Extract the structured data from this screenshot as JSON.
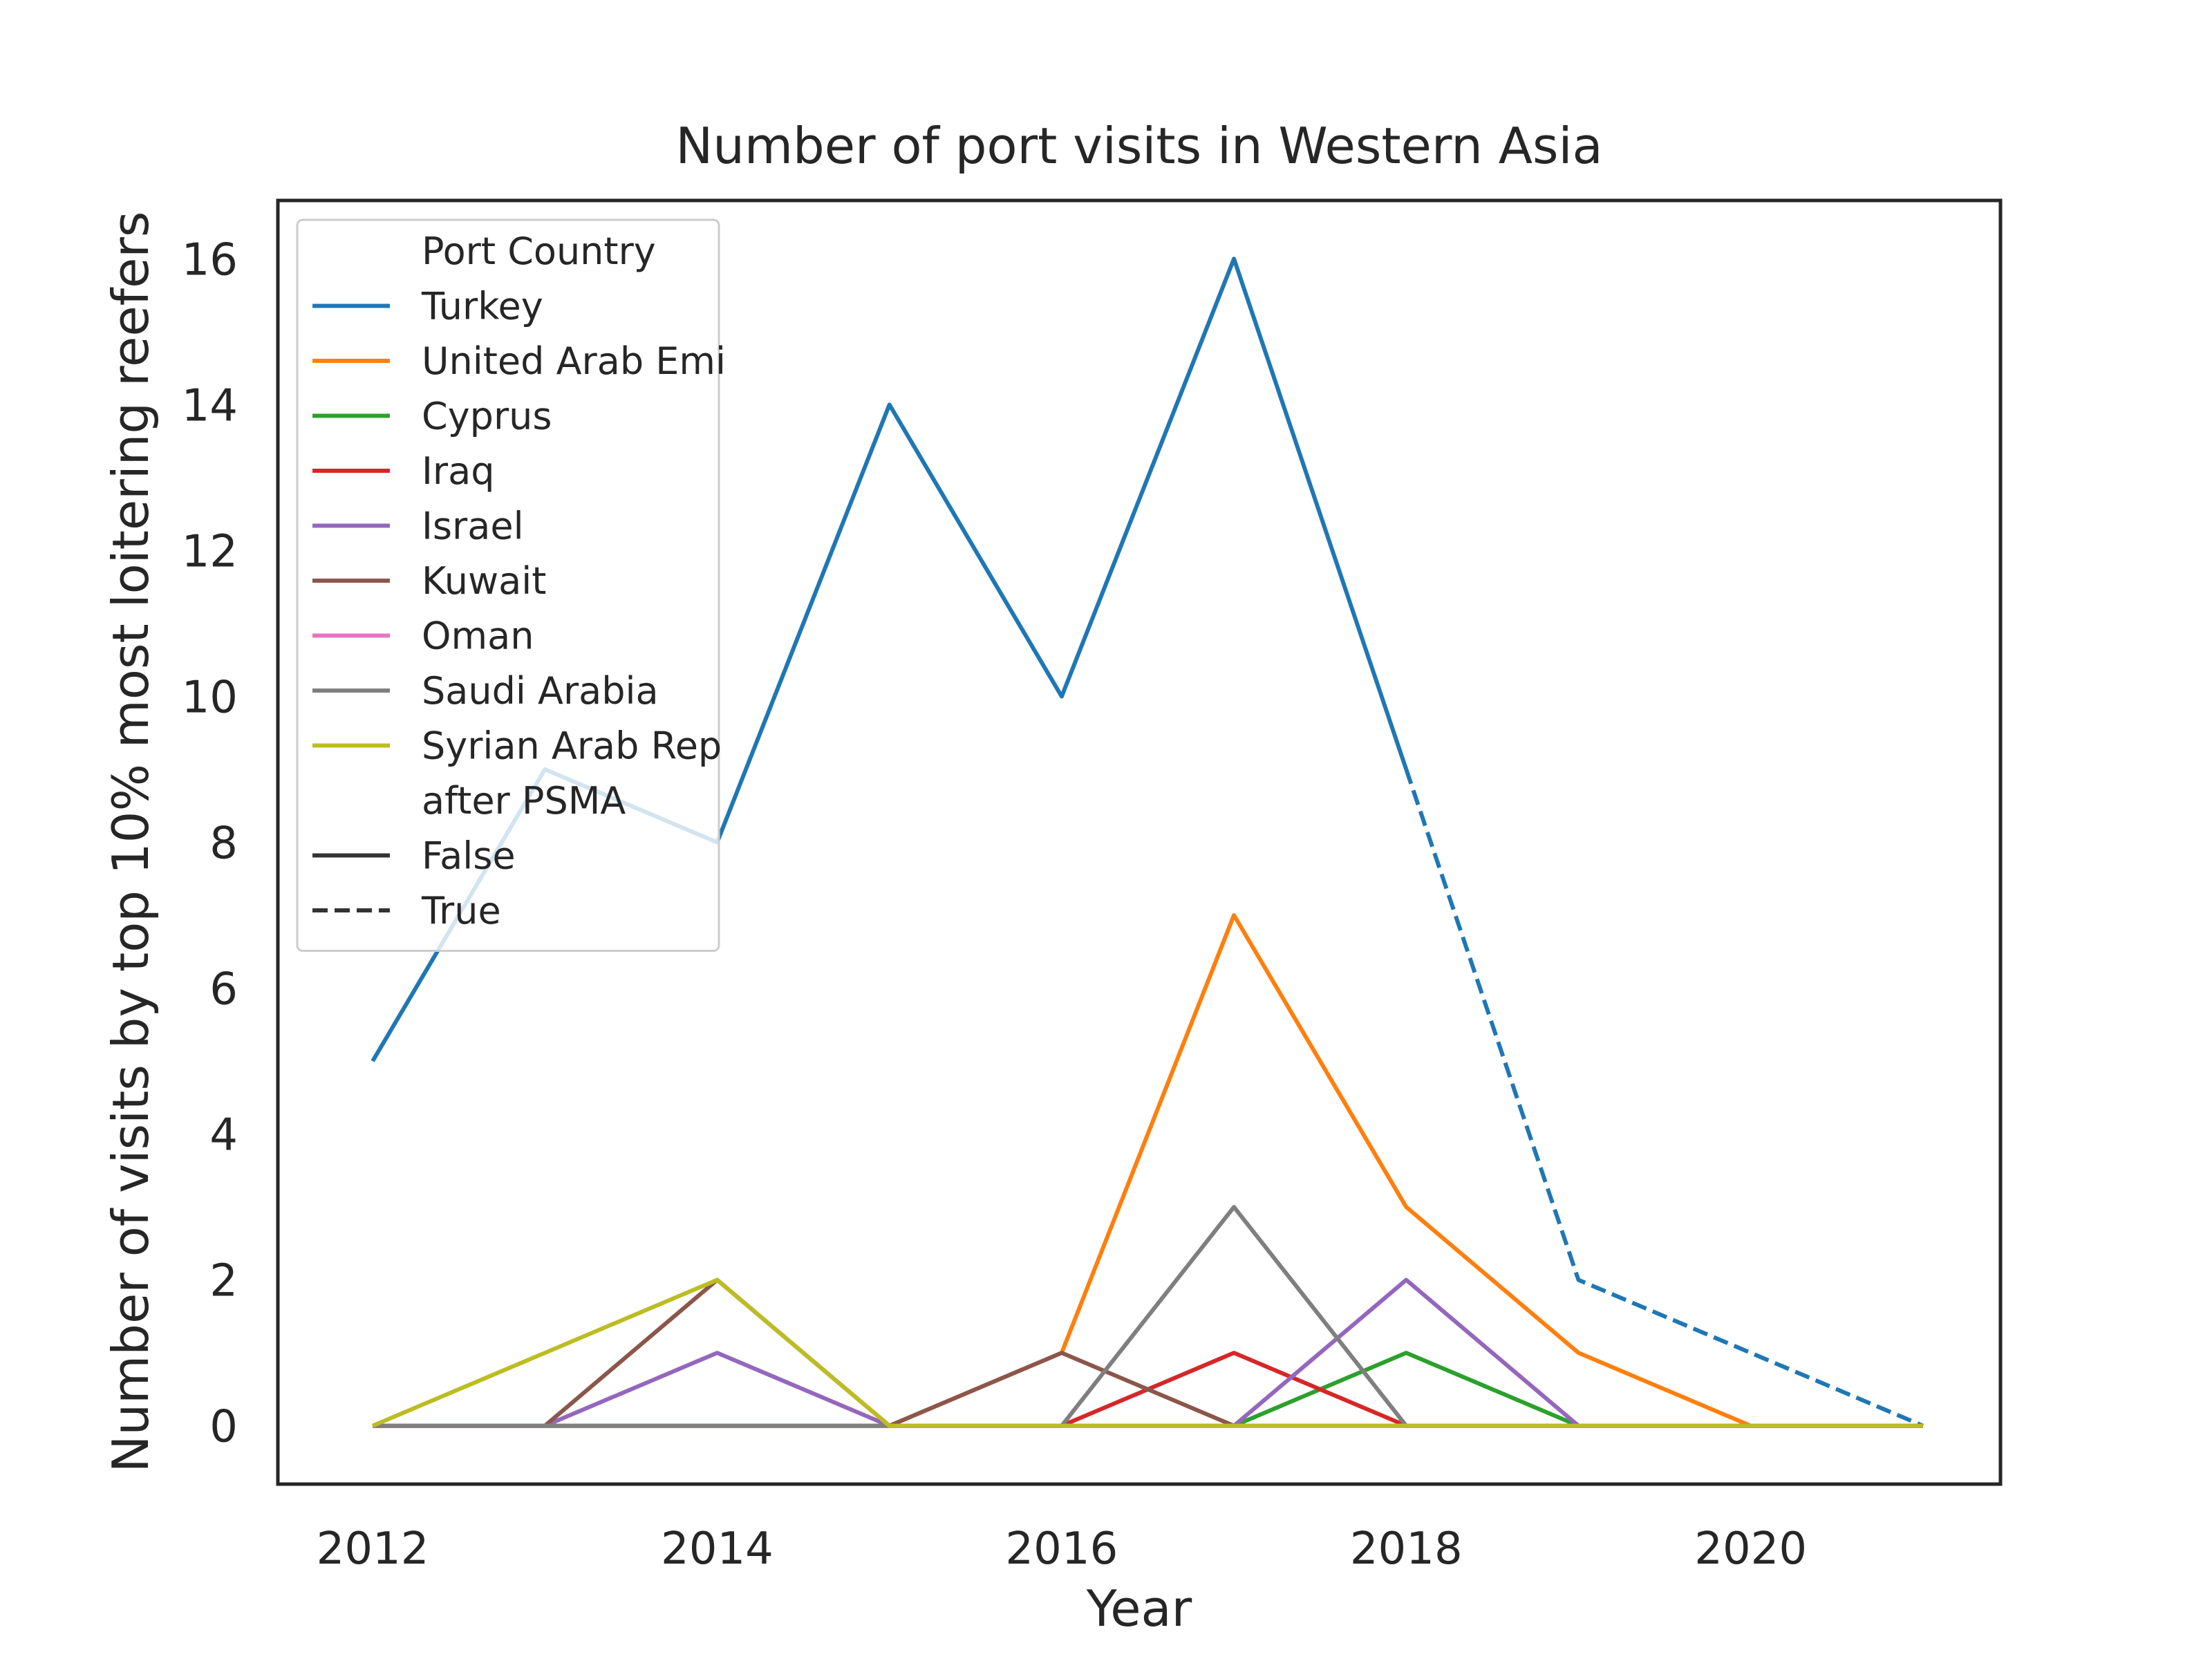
{
  "chart_data": {
    "type": "line",
    "title": "Number of port visits in Western Asia",
    "xlabel": "Year",
    "ylabel": "Number of visits by top 10% most loitering reefers",
    "xlim": [
      2011.45,
      2021.45
    ],
    "ylim": [
      -0.8,
      16.8
    ],
    "xticks": [
      2012,
      2014,
      2016,
      2018,
      2020
    ],
    "yticks": [
      0,
      2,
      4,
      6,
      8,
      10,
      12,
      14,
      16
    ],
    "grid": false,
    "legend": {
      "placement": "top-left",
      "hue_title": "Port Country",
      "style_title": "after PSMA",
      "styles": [
        {
          "label": "False",
          "dash": "solid"
        },
        {
          "label": "True",
          "dash": "dashed"
        }
      ]
    },
    "series": [
      {
        "name": "Turkey",
        "color": "#1f77b4",
        "segments": [
          {
            "after_psma": false,
            "x": [
              2012,
              2013,
              2014,
              2015,
              2016,
              2017,
              2018
            ],
            "y": [
              5,
              9,
              8,
              14,
              10,
              16,
              9
            ]
          },
          {
            "after_psma": true,
            "x": [
              2018,
              2019,
              2020,
              2021
            ],
            "y": [
              9,
              2,
              1,
              0
            ]
          }
        ]
      },
      {
        "name": "United Arab Emi",
        "color": "#ff7f0e",
        "segments": [
          {
            "after_psma": false,
            "x": [
              2012,
              2013,
              2014,
              2015,
              2016,
              2017,
              2018,
              2019,
              2020,
              2021
            ],
            "y": [
              0,
              0,
              0,
              0,
              1,
              7,
              3,
              1,
              0,
              0
            ]
          }
        ]
      },
      {
        "name": "Cyprus",
        "color": "#2ca02c",
        "segments": [
          {
            "after_psma": false,
            "x": [
              2012,
              2013,
              2014,
              2015,
              2016,
              2017,
              2018,
              2019,
              2020,
              2021
            ],
            "y": [
              0,
              0,
              0,
              0,
              0,
              0,
              1,
              0,
              0,
              0
            ]
          }
        ]
      },
      {
        "name": "Iraq",
        "color": "#d62728",
        "segments": [
          {
            "after_psma": false,
            "x": [
              2012,
              2013,
              2014,
              2015,
              2016,
              2017,
              2018,
              2019,
              2020,
              2021
            ],
            "y": [
              0,
              0,
              0,
              0,
              0,
              1,
              0,
              0,
              0,
              0
            ]
          }
        ]
      },
      {
        "name": "Israel",
        "color": "#9467bd",
        "segments": [
          {
            "after_psma": false,
            "x": [
              2012,
              2013,
              2014,
              2015,
              2016,
              2017,
              2018,
              2019,
              2020,
              2021
            ],
            "y": [
              0,
              0,
              1,
              0,
              0,
              0,
              2,
              0,
              0,
              0
            ]
          }
        ]
      },
      {
        "name": "Kuwait",
        "color": "#8c564b",
        "segments": [
          {
            "after_psma": false,
            "x": [
              2012,
              2013,
              2014,
              2015,
              2016,
              2017,
              2018,
              2019,
              2020,
              2021
            ],
            "y": [
              0,
              0,
              2,
              0,
              1,
              0,
              0,
              0,
              0,
              0
            ]
          }
        ]
      },
      {
        "name": "Oman",
        "color": "#e377c2",
        "segments": [
          {
            "after_psma": false,
            "x": [
              2012,
              2013,
              2014,
              2015,
              2016,
              2017,
              2018,
              2019,
              2020,
              2021
            ],
            "y": [
              0,
              0,
              0,
              0,
              0,
              0,
              0,
              0,
              0,
              0
            ]
          }
        ]
      },
      {
        "name": "Saudi Arabia",
        "color": "#7f7f7f",
        "segments": [
          {
            "after_psma": false,
            "x": [
              2012,
              2013,
              2014,
              2015,
              2016,
              2017,
              2018,
              2019,
              2020,
              2021
            ],
            "y": [
              0,
              0,
              0,
              0,
              0,
              3,
              0,
              0,
              0,
              0
            ]
          }
        ]
      },
      {
        "name": "Syrian Arab Rep",
        "color": "#bcbd22",
        "segments": [
          {
            "after_psma": false,
            "x": [
              2012,
              2013,
              2014,
              2015,
              2016,
              2017,
              2018,
              2019,
              2020,
              2021
            ],
            "y": [
              0,
              1,
              2,
              0,
              0,
              0,
              0,
              0,
              0,
              0
            ]
          }
        ]
      }
    ]
  }
}
